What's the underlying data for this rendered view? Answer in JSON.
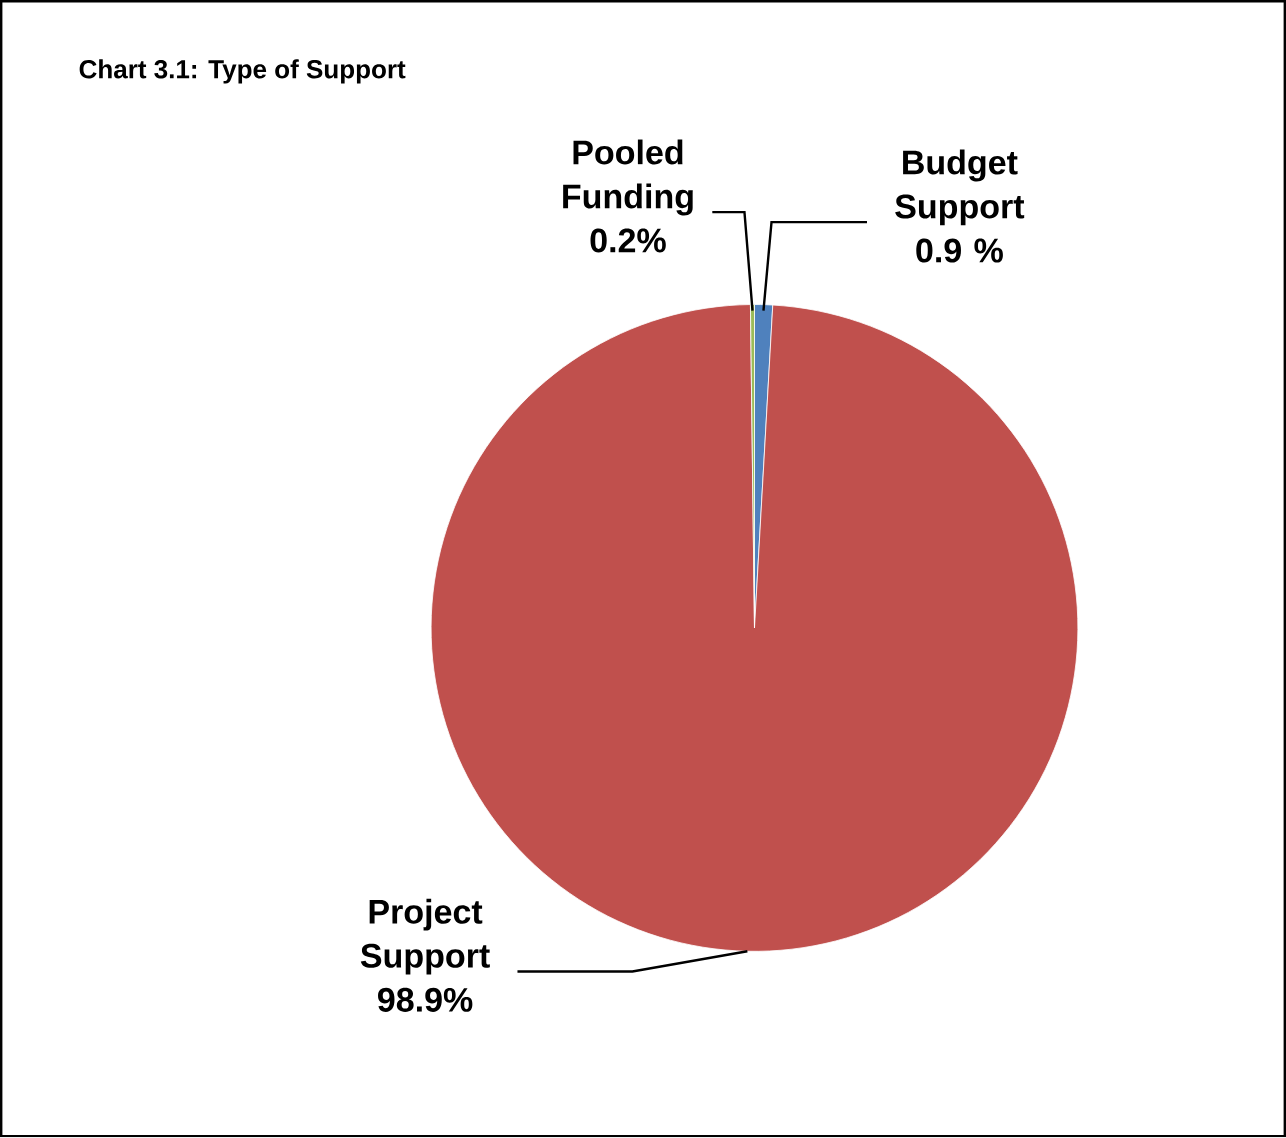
{
  "chart_data": {
    "type": "pie",
    "title": "Chart 3.1: Type of Support",
    "categories": [
      "Budget Support",
      "Project Support",
      "Pooled Funding"
    ],
    "values": [
      0.9,
      98.9,
      0.2
    ],
    "value_labels": [
      "0.9 %",
      "98.9%",
      "0.2%"
    ],
    "colors": [
      "#4f81bd",
      "#c0504d",
      "#9bbb59"
    ]
  }
}
